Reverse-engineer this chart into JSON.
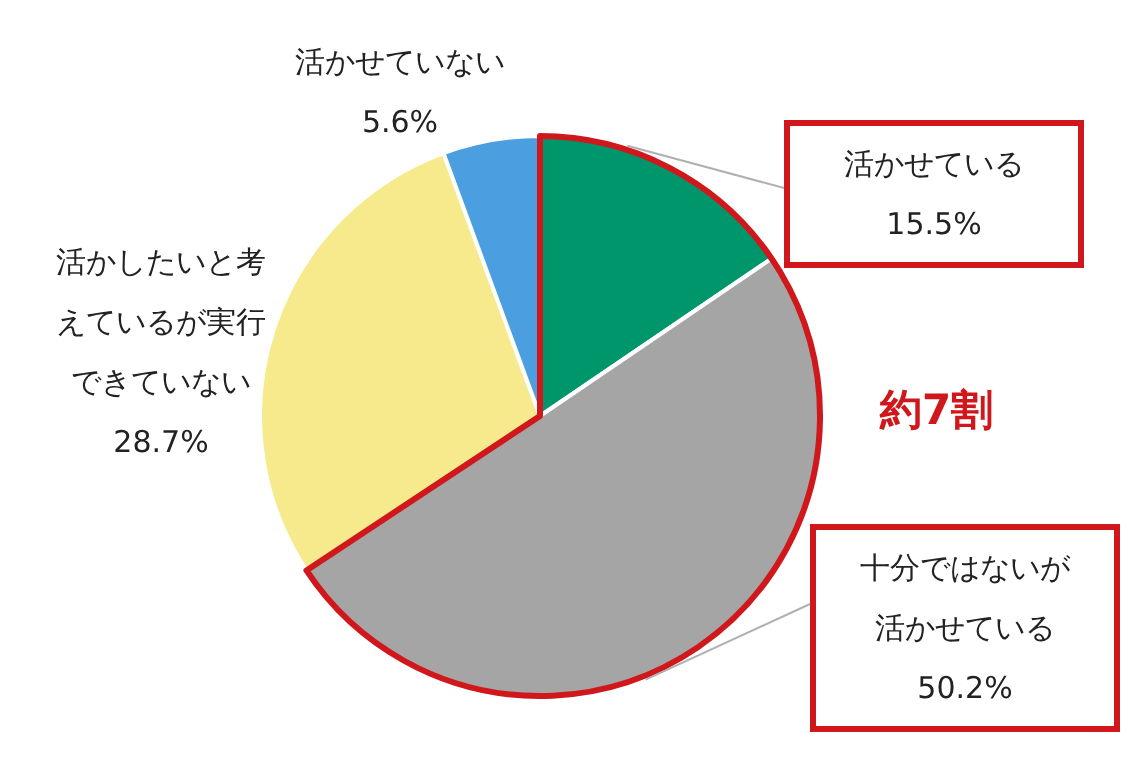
{
  "chart_data": {
    "type": "pie",
    "categories": [
      "活かせている",
      "十分ではないが活かせている",
      "活かしたいと考えているが実行できていない",
      "活かせていない"
    ],
    "values": [
      15.5,
      50.2,
      28.7,
      5.6
    ],
    "colors": [
      "#00966b",
      "#a5a5a5",
      "#f7ea8c",
      "#4b9fe1"
    ],
    "value_labels": [
      "15.5%",
      "50.2%",
      "28.7%",
      "5.6%"
    ],
    "annotations": [
      "約7割"
    ]
  }
}
